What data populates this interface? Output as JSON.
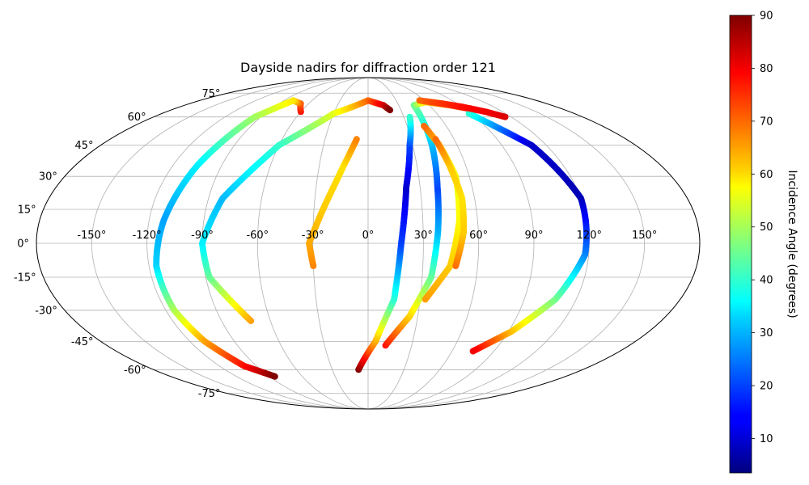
{
  "chart_data": {
    "type": "scatter",
    "projection": "mollweide",
    "title": "Dayside nadirs for diffraction order 121",
    "grid": true,
    "x_ticks": [
      "-150°",
      "-120°",
      "-90°",
      "-60°",
      "-30°",
      "0°",
      "30°",
      "60°",
      "90°",
      "120°",
      "150°"
    ],
    "y_ticks": [
      "-75°",
      "-60°",
      "-45°",
      "-30°",
      "-15°",
      "0°",
      "15°",
      "30°",
      "45°",
      "60°",
      "75°"
    ],
    "colorbar": {
      "label": "Incidence Angle (degrees)",
      "colormap": "jet",
      "range": [
        3.5,
        90
      ],
      "ticks": [
        "10",
        "20",
        "30",
        "40",
        "50",
        "60",
        "70",
        "80",
        "90"
      ]
    },
    "series": [
      {
        "lon": [
          -60,
          -68,
          -80,
          -95,
          -105,
          -112,
          -116,
          -115,
          -110,
          -100,
          -85
        ],
        "lat": [
          63,
          68,
          70,
          60,
          35,
          10,
          -10,
          -30,
          -45,
          -58,
          -64
        ],
        "incidence": [
          78,
          72,
          60,
          50,
          35,
          28,
          32,
          50,
          65,
          78,
          90
        ]
      },
      {
        "lon": [
          -72,
          -88,
          -90,
          -82,
          -60,
          -30,
          0,
          15,
          20
        ],
        "lat": [
          -35,
          -15,
          0,
          20,
          45,
          62,
          70,
          67,
          64
        ],
        "incidence": [
          66,
          45,
          35,
          30,
          40,
          55,
          70,
          82,
          90
        ]
      },
      {
        "lon": [
          -30,
          -32,
          -25,
          -15,
          -8
        ],
        "lat": [
          -10,
          0,
          15,
          35,
          48
        ],
        "incidence": [
          68,
          65,
          62,
          60,
          68
        ]
      },
      {
        "lon": [
          -8,
          5,
          15,
          18,
          22,
          28,
          35
        ],
        "lat": [
          -60,
          -45,
          -25,
          0,
          25,
          45,
          60
        ],
        "incidence": [
          90,
          65,
          40,
          20,
          10,
          20,
          40
        ]
      },
      {
        "lon": [
          12,
          25,
          35,
          38,
          40,
          43,
          45,
          60,
          80,
          100
        ],
        "lat": [
          -47,
          -33,
          -15,
          5,
          25,
          45,
          67,
          69,
          67,
          64
        ],
        "incidence": [
          78,
          62,
          45,
          30,
          20,
          30,
          45,
          62,
          70,
          82
        ]
      },
      {
        "lon": [
          33,
          45,
          50,
          52,
          48,
          43
        ],
        "lat": [
          -25,
          -10,
          10,
          30,
          45,
          55
        ],
        "incidence": [
          66,
          62,
          58,
          56,
          62,
          70
        ]
      },
      {
        "lon": [
          48,
          52,
          53,
          50,
          47
        ],
        "lat": [
          -10,
          5,
          20,
          35,
          48
        ],
        "incidence": [
          70,
          62,
          60,
          62,
          70
        ]
      },
      {
        "lon": [
          88,
          110,
          120,
          118,
          108,
          92,
          75
        ],
        "lat": [
          62,
          45,
          20,
          -5,
          -25,
          -40,
          -50
        ],
        "incidence": [
          40,
          10,
          8,
          25,
          45,
          62,
          80
        ]
      },
      {
        "lon": [
          55,
          75,
          90,
          105,
          115
        ],
        "lat": [
          70,
          68,
          66,
          63,
          60
        ],
        "incidence": [
          70,
          75,
          78,
          80,
          82
        ]
      }
    ]
  }
}
